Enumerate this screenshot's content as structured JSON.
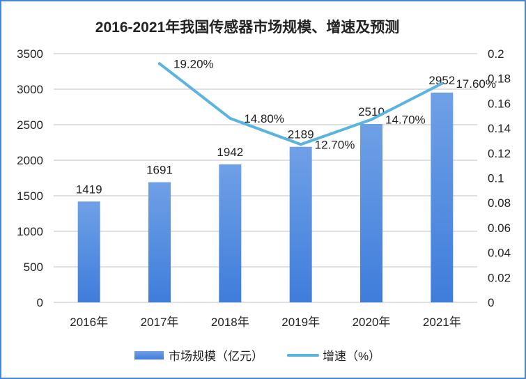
{
  "chart_data": {
    "type": "bar+line",
    "title": "2016-2021年我国传感器市场规模、增速及预测",
    "categories": [
      "2016年",
      "2017年",
      "2018年",
      "2019年",
      "2020年",
      "2021年"
    ],
    "series": [
      {
        "name": "市场规模（亿元）",
        "type": "bar",
        "axis": "left",
        "color": "#4f8be0",
        "values": [
          1419,
          1691,
          1942,
          2189,
          2510,
          2952
        ],
        "labels": [
          "1419",
          "1691",
          "1942",
          "2189",
          "2510",
          "2952"
        ]
      },
      {
        "name": "增速（%）",
        "type": "line",
        "axis": "right",
        "color": "#5ab4e0",
        "values": [
          null,
          0.192,
          0.148,
          0.127,
          0.147,
          0.176
        ],
        "labels": [
          "",
          "19.20%",
          "14.80%",
          "12.70%",
          "14.70%",
          "17.60%"
        ]
      }
    ],
    "y_left": {
      "min": 0,
      "max": 3500,
      "ticks": [
        "0",
        "500",
        "1000",
        "1500",
        "2000",
        "2500",
        "3000",
        "3500"
      ]
    },
    "y_right": {
      "min": 0,
      "max": 0.2,
      "ticks": [
        "0",
        "0.02",
        "0.04",
        "0.06",
        "0.08",
        "0.1",
        "0.12",
        "0.14",
        "0.16",
        "0.18",
        "0.2"
      ]
    },
    "grid": true,
    "legend": "bottom"
  }
}
